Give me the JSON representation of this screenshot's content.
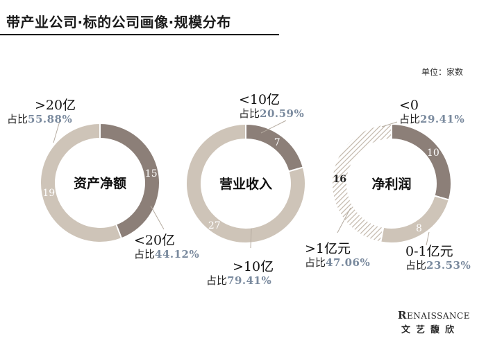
{
  "title": "带产业公司·标的公司画像·规模分布",
  "unit_note": "单位：家数",
  "colors": {
    "dark_segment": "#8c7f78",
    "light_segment": "#cec4b8",
    "pattern_stroke": "#c2b7aa",
    "percent_text": "#7a8a9e"
  },
  "chart_data": [
    {
      "type": "pie",
      "variant": "donut",
      "title": "资产净额",
      "slices": [
        {
          "label": "<20亿",
          "value": 15,
          "share_text": "占比",
          "percent": "44.12%",
          "style": "dark"
        },
        {
          "label": ">20亿",
          "value": 19,
          "share_text": "占比",
          "percent": "55.88%",
          "style": "light"
        }
      ]
    },
    {
      "type": "pie",
      "variant": "donut",
      "title": "营业收入",
      "slices": [
        {
          "label": "<10亿",
          "value": 7,
          "share_text": "占比",
          "percent": "20.59%",
          "style": "dark"
        },
        {
          "label": ">10亿",
          "value": 27,
          "share_text": "占比",
          "percent": "79.41%",
          "style": "light"
        }
      ]
    },
    {
      "type": "pie",
      "variant": "donut",
      "title": "净利润",
      "slices": [
        {
          "label": "<0",
          "value": 10,
          "share_text": "占比",
          "percent": "29.41%",
          "style": "dark"
        },
        {
          "label": "0-1亿元",
          "value": 8,
          "share_text": "占比",
          "percent": "23.53%",
          "style": "light"
        },
        {
          "label": ">1亿元",
          "value": 16,
          "share_text": "占比",
          "percent": "47.06%",
          "style": "hatched"
        }
      ]
    }
  ],
  "brand": {
    "logo_initial": "R",
    "logo_rest": "ENAISSANCE",
    "name_cn": "文艺馥欣"
  }
}
